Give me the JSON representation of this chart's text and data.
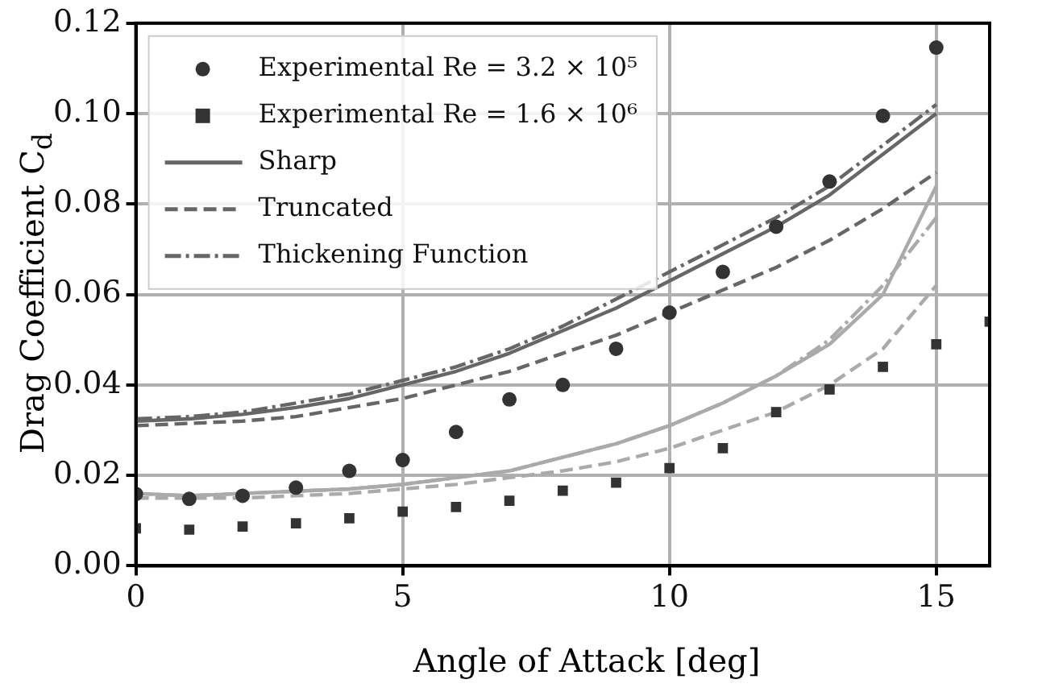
{
  "chart_data": {
    "type": "scatter",
    "xlabel": "Angle of Attack [deg]",
    "ylabel": "Drag Coefficient C$_{d}$",
    "x": [
      0,
      1,
      2,
      3,
      4,
      5,
      6,
      7,
      8,
      9,
      10,
      11,
      12,
      13,
      14,
      15
    ],
    "xlim": [
      0,
      16
    ],
    "xticks": [
      0,
      5,
      10,
      15
    ],
    "ylim": [
      0,
      0.12
    ],
    "yticks": [
      {
        "value": 0,
        "label": "0.00"
      },
      {
        "value": 0.02,
        "label": "0.02"
      },
      {
        "value": 0.04,
        "label": "0.04"
      },
      {
        "value": 0.06,
        "label": "0.06"
      },
      {
        "value": 0.08,
        "label": "0.08"
      },
      {
        "value": 0.1,
        "label": "0.10"
      },
      {
        "value": 0.12,
        "label": "0.12"
      }
    ],
    "grid": true,
    "legend": "top left",
    "series": [
      {
        "name": "Experimental Re = 3.2 × 10⁵",
        "type": "scatter",
        "marker": "circle",
        "color": "#333333",
        "values": [
          0.0159,
          0.0148,
          0.0155,
          0.0173,
          0.021,
          0.0234,
          0.0296,
          0.0368,
          0.04,
          0.048,
          0.056,
          0.065,
          0.075,
          0.085,
          0.0995,
          0.1146
        ]
      },
      {
        "name": "Experimental Re = 1.6 × 10⁶",
        "type": "scatter",
        "marker": "square",
        "color": "#333333",
        "x": [
          0,
          1,
          2,
          3,
          4,
          5,
          6,
          7,
          8,
          9,
          10,
          11,
          12,
          13,
          14,
          15,
          16
        ],
        "values": [
          0.0083,
          0.008,
          0.0087,
          0.0094,
          0.0105,
          0.012,
          0.013,
          0.0144,
          0.0166,
          0.0184,
          0.0216,
          0.026,
          0.034,
          0.039,
          0.044,
          0.049,
          0.054
        ]
      },
      {
        "name": "Sharp",
        "type": "line",
        "line_style": "solid",
        "color": "#666666",
        "values": [
          0.032,
          0.0325,
          0.0335,
          0.035,
          0.037,
          0.04,
          0.043,
          0.047,
          0.052,
          0.057,
          0.063,
          0.069,
          0.075,
          0.082,
          0.091,
          0.1
        ]
      },
      {
        "name": "Truncated",
        "type": "line",
        "line_style": "dashed",
        "color": "#666666",
        "values": [
          0.031,
          0.0315,
          0.032,
          0.033,
          0.035,
          0.037,
          0.04,
          0.043,
          0.047,
          0.051,
          0.056,
          0.061,
          0.066,
          0.072,
          0.079,
          0.087
        ]
      },
      {
        "name": "Thickening Function",
        "type": "line",
        "line_style": "dashdot",
        "color": "#666666",
        "values": [
          0.0325,
          0.033,
          0.034,
          0.036,
          0.038,
          0.041,
          0.044,
          0.048,
          0.053,
          0.059,
          0.065,
          0.071,
          0.077,
          0.084,
          0.093,
          0.102
        ]
      },
      {
        "type": "line",
        "line_style": "solid",
        "color": "#aaaaaa",
        "values": [
          0.016,
          0.0155,
          0.016,
          0.0165,
          0.017,
          0.018,
          0.0195,
          0.021,
          0.024,
          0.027,
          0.031,
          0.036,
          0.042,
          0.049,
          0.06,
          0.084
        ]
      },
      {
        "type": "line",
        "line_style": "dashed",
        "color": "#aaaaaa",
        "values": [
          0.015,
          0.015,
          0.015,
          0.0155,
          0.016,
          0.017,
          0.018,
          0.0195,
          0.021,
          0.023,
          0.026,
          0.03,
          0.034,
          0.04,
          0.048,
          0.062
        ]
      },
      {
        "type": "line",
        "line_style": "dashdot",
        "color": "#aaaaaa",
        "values": [
          0.016,
          0.0155,
          0.016,
          0.0165,
          0.017,
          0.018,
          0.0195,
          0.021,
          0.024,
          0.027,
          0.031,
          0.036,
          0.042,
          0.05,
          0.062,
          0.077
        ]
      }
    ]
  }
}
